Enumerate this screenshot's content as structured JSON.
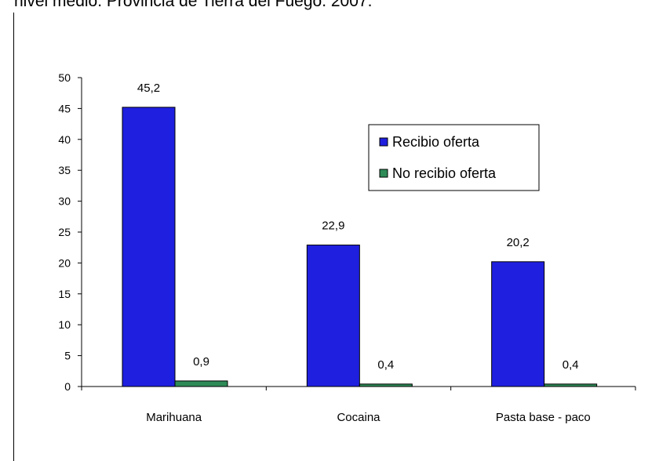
{
  "caption": "nivel medio. Provincia de Tierra del Fuego. 2007.",
  "chart_data": {
    "type": "bar",
    "title": "",
    "xlabel": "",
    "ylabel": "",
    "ylim": [
      0,
      50
    ],
    "yticks": [
      0,
      5,
      10,
      15,
      20,
      25,
      30,
      35,
      40,
      45,
      50
    ],
    "categories": [
      "Marihuana",
      "Cocaina",
      "Pasta base - paco"
    ],
    "series": [
      {
        "name": "Recibio oferta",
        "values": [
          45.2,
          22.9,
          20.2
        ],
        "labels": [
          "45,2",
          "22,9",
          "20,2"
        ],
        "color": "#1f1fe0"
      },
      {
        "name": "No recibio oferta",
        "values": [
          0.9,
          0.4,
          0.4
        ],
        "labels": [
          "0,9",
          "0,4",
          "0,4"
        ],
        "color": "#2e8b57"
      }
    ],
    "grid": false,
    "legend": "top-right"
  }
}
